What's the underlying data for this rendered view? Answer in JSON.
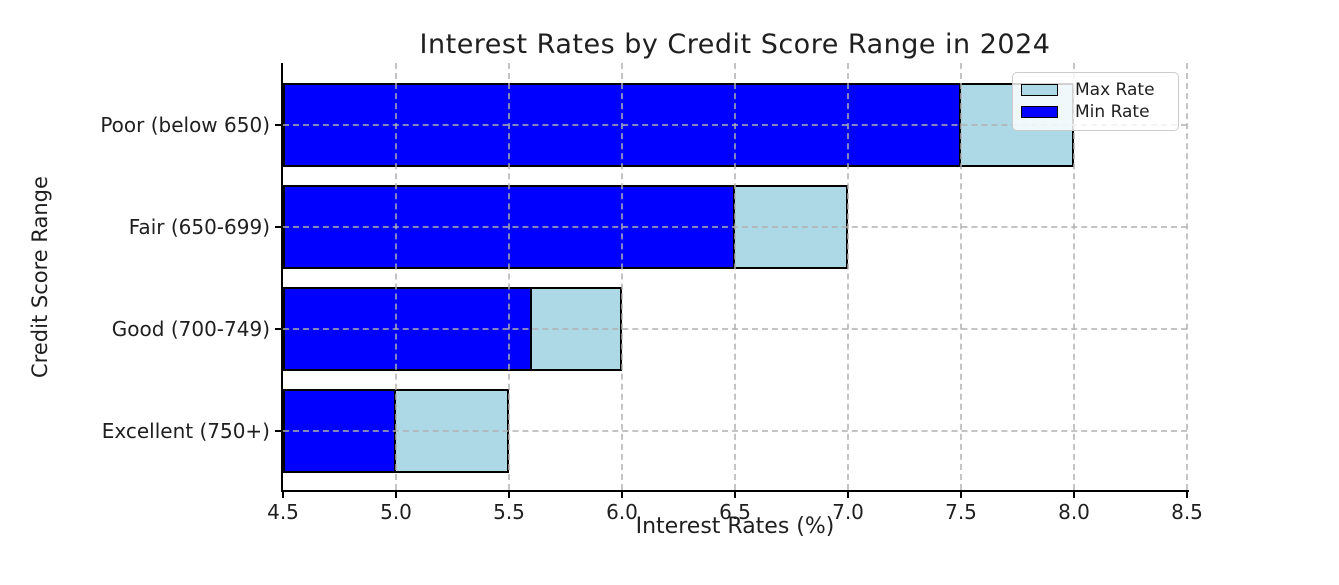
{
  "chart_data": {
    "type": "bar",
    "orientation": "horizontal",
    "title": "Interest Rates by Credit Score Range in 2024",
    "xlabel": "Interest Rates (%)",
    "ylabel": "Credit Score Range",
    "categories": [
      "Poor (below 650)",
      "Fair (650-699)",
      "Good (700-749)",
      "Excellent (750+)"
    ],
    "series": [
      {
        "name": "Max Rate",
        "values": [
          8.0,
          7.0,
          6.0,
          5.5
        ],
        "color": "#add8e6"
      },
      {
        "name": "Min Rate",
        "values": [
          7.5,
          6.5,
          5.6,
          5.0
        ],
        "color": "#0000ff"
      }
    ],
    "xlim": [
      4.5,
      8.5
    ],
    "xticks": [
      4.5,
      5.0,
      5.5,
      6.0,
      6.5,
      7.0,
      7.5,
      8.0,
      8.5
    ],
    "xtick_labels": [
      "4.5",
      "5.0",
      "5.5",
      "6.0",
      "6.5",
      "7.0",
      "7.5",
      "8.0",
      "8.5"
    ],
    "grid": true,
    "grid_style": "dashed",
    "legend_position": "upper right",
    "colors": {
      "bar_edge": "#000000",
      "grid": "#b0b0b0",
      "background": "#ffffff",
      "text": "#1f1f1f"
    }
  }
}
